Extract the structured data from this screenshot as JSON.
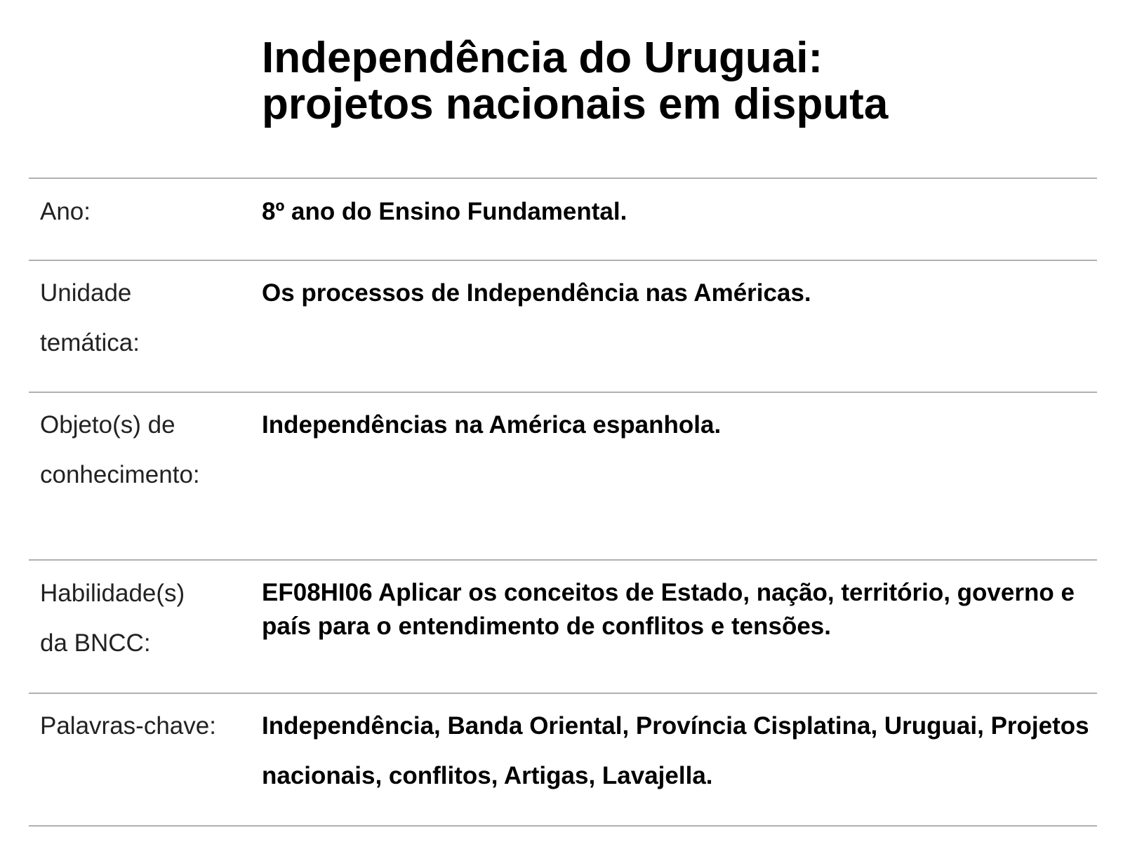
{
  "title": {
    "line1": "Independência do Uruguai:",
    "line2": "projetos nacionais em disputa"
  },
  "rows": [
    {
      "label": [
        "Ano:"
      ],
      "value": "8º ano do Ensino Fundamental."
    },
    {
      "label": [
        "Unidade",
        "temática:"
      ],
      "value": "Os processos de Independência nas Américas."
    },
    {
      "label": [
        "Objeto(s) de",
        "conhecimento:"
      ],
      "value": "Independências na América espanhola."
    },
    {
      "label": [
        "Habilidade(s)",
        "da BNCC:"
      ],
      "value": "EF08HI06 Aplicar os conceitos de Estado, nação, território, governo e país para o entendimento de conflitos e tensões."
    },
    {
      "label": [
        "Palavras-chave:"
      ],
      "value": "Independência, Banda Oriental, Província Cisplatina, Uruguai, Projetos nacionais, conflitos, Artigas, Lavajella."
    }
  ]
}
